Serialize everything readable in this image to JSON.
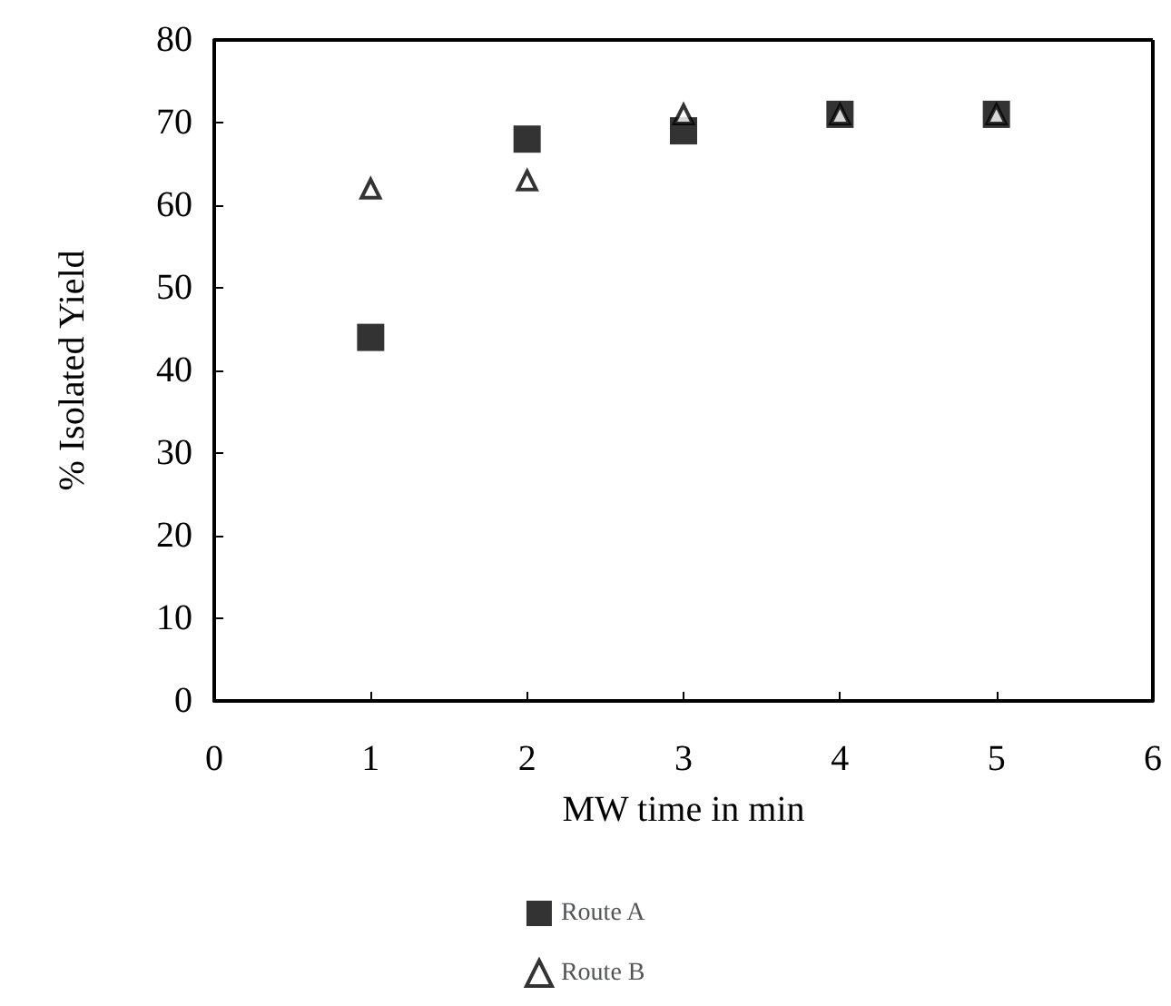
{
  "chart_data": {
    "type": "scatter",
    "xlabel": "MW time in min",
    "ylabel": "% Isolated Yield",
    "x": [
      1,
      2,
      3,
      4,
      5
    ],
    "series": [
      {
        "name": "Route A",
        "color": "#000000",
        "marker": "square",
        "values": [
          44,
          68,
          69,
          71,
          71
        ]
      },
      {
        "name": "Route B",
        "color": "#000000",
        "marker": "triangle",
        "values": [
          62,
          63,
          71,
          71,
          71
        ]
      }
    ],
    "xlim": [
      0,
      6
    ],
    "xticks": [
      0,
      1,
      2,
      3,
      4,
      5,
      6
    ],
    "ylim": [
      0,
      80
    ],
    "yticks": [
      0,
      10,
      20,
      30,
      40,
      50,
      60,
      70,
      80
    ],
    "grid": false,
    "legend": "bottom"
  }
}
